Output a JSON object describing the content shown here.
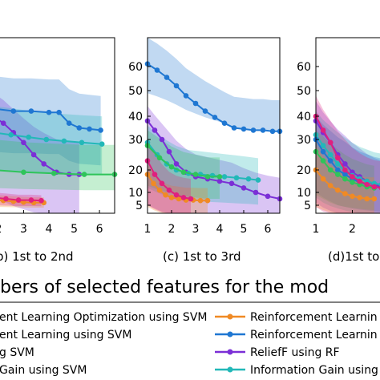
{
  "figure_caption": "bers of selected features for the mod",
  "panels": [
    {
      "id": "b",
      "caption": "b) 1st to 2nd"
    },
    {
      "id": "c",
      "caption": "(c) 1st to 3rd"
    },
    {
      "id": "d",
      "caption": "(d)1st to"
    }
  ],
  "legend": {
    "left": [
      {
        "label": "ent Learning Optimization using SVM",
        "color": "#f08a24"
      },
      {
        "label": "ent Learning using SVM",
        "color": "#1f77d2"
      },
      {
        "label": "g SVM",
        "color": "#e0207e"
      },
      {
        "label": "Gain using SVM",
        "color": "#2fc45a"
      }
    ],
    "right": [
      {
        "label": "Reinforcement Learnin",
        "color": "#f08a24"
      },
      {
        "label": "Reinforcement Learnin",
        "color": "#1f77d2"
      },
      {
        "label": "ReliefF using RF",
        "color": "#7b2fd6"
      },
      {
        "label": "Information Gain using",
        "color": "#22b8b8"
      }
    ]
  },
  "chart_data": [
    {
      "type": "line",
      "panel": "b",
      "x_ticks": [
        "2",
        "3",
        "4",
        "5",
        "6"
      ],
      "xlim": [
        1.75,
        6.6
      ],
      "ylim": [
        0,
        65
      ],
      "series": [
        {
          "color": "#1f77d2",
          "x": [
            1.8,
            2.6,
            3.3,
            4.0,
            4.4,
            4.8,
            5.2,
            5.6,
            6.05
          ],
          "y": [
            43,
            42,
            42,
            41.5,
            41.5,
            37,
            35,
            34.5,
            34
          ],
          "band": [
            26,
            56
          ]
        },
        {
          "color": "#7b2fd6",
          "x": [
            1.8,
            2.2,
            2.6,
            3.0,
            3.4,
            3.8,
            4.3,
            4.8,
            5.2
          ],
          "y": [
            40,
            37,
            33,
            29,
            25,
            22,
            19,
            18,
            18
          ],
          "band": [
            8,
            49
          ]
        },
        {
          "color": "#22b8b8",
          "x": [
            1.8,
            2.5,
            3.2,
            3.9,
            4.6,
            5.3,
            6.1
          ],
          "y": [
            33,
            32,
            31,
            30,
            29.5,
            29,
            28.5
          ],
          "band": [
            20,
            44
          ]
        },
        {
          "color": "#2fc45a",
          "x": [
            1.8,
            3.0,
            4.2,
            5.4,
            6.6
          ],
          "y": [
            20,
            19,
            18.5,
            18,
            18
          ],
          "band": [
            12,
            30
          ]
        },
        {
          "color": "#f08a24",
          "x": [
            1.8,
            2.2,
            2.6,
            3.0,
            3.4,
            3.8
          ],
          "y": [
            7,
            6.8,
            6.5,
            6.2,
            6,
            6
          ],
          "band": [
            4,
            9
          ]
        },
        {
          "color": "#e0207e",
          "x": [
            1.8,
            2.3,
            2.8,
            3.3,
            3.7
          ],
          "y": [
            8,
            7.5,
            7,
            7,
            6.8
          ],
          "band": [
            5,
            10
          ]
        }
      ]
    },
    {
      "type": "line",
      "panel": "c",
      "x_ticks": [
        "1",
        "2",
        "3",
        "4",
        "5",
        "6"
      ],
      "y_ticks": [
        "5",
        "10",
        "20",
        "30",
        "40",
        "50",
        "60"
      ],
      "xlim": [
        1,
        6.5
      ],
      "ylim": [
        0,
        67
      ],
      "series": [
        {
          "color": "#1f77d2",
          "x": [
            1.0,
            1.4,
            1.8,
            2.2,
            2.6,
            3.0,
            3.4,
            3.8,
            4.2,
            4.6,
            5.0,
            5.4,
            5.8,
            6.2,
            6.5
          ],
          "y": [
            61,
            58.5,
            55.5,
            52,
            48,
            45,
            42,
            39.5,
            37,
            35,
            34.5,
            34,
            34,
            33.5,
            33.5
          ],
          "band": [
            49,
            71
          ]
        },
        {
          "color": "#7b2fd6",
          "x": [
            1.0,
            1.3,
            1.6,
            1.9,
            2.2,
            2.6,
            3.0,
            3.5,
            4.0,
            4.5,
            5.0,
            5.5,
            6.0,
            6.5
          ],
          "y": [
            38,
            34,
            30,
            26,
            22,
            19,
            17,
            16,
            15,
            14,
            12,
            10,
            8.5,
            7.5
          ],
          "band": [
            5,
            44
          ]
        },
        {
          "color": "#22b8b8",
          "x": [
            1.0,
            1.4,
            1.8,
            2.2,
            2.7,
            3.2,
            3.7,
            4.2,
            4.7,
            5.2,
            5.6
          ],
          "y": [
            29,
            25,
            22,
            20,
            18.5,
            18,
            17.5,
            17,
            16.5,
            16,
            15.5
          ],
          "band": [
            12,
            36
          ]
        },
        {
          "color": "#2fc45a",
          "x": [
            1.0,
            1.5,
            2.0,
            2.5,
            3.0,
            3.5,
            4.0
          ],
          "y": [
            28,
            24,
            21,
            19,
            18,
            17,
            17
          ],
          "band": [
            13,
            34
          ]
        },
        {
          "color": "#f08a24",
          "x": [
            1.0,
            1.25,
            1.5,
            1.75,
            2.0,
            2.3,
            2.6,
            2.9,
            3.2,
            3.5
          ],
          "y": [
            18,
            14,
            11,
            9,
            8,
            7.5,
            7,
            7,
            6.8,
            6.8
          ],
          "band": [
            4,
            22
          ]
        },
        {
          "color": "#e0207e",
          "x": [
            1.0,
            1.3,
            1.6,
            1.9,
            2.2,
            2.5,
            2.8
          ],
          "y": [
            23,
            18,
            14,
            11,
            9,
            8,
            7.5
          ],
          "band": [
            5,
            30
          ]
        }
      ]
    },
    {
      "type": "line",
      "panel": "d",
      "x_ticks": [
        "1",
        "2"
      ],
      "y_ticks": [
        "5",
        "10",
        "20",
        "30",
        "40",
        "50",
        "60"
      ],
      "xlim": [
        1,
        3.0
      ],
      "ylim": [
        0,
        67
      ],
      "series": [
        {
          "color": "#7b2fd6",
          "x": [
            1.0,
            1.2,
            1.4,
            1.6,
            1.8,
            2.0,
            2.2,
            2.4,
            2.6,
            2.8,
            3.0
          ],
          "y": [
            38,
            33,
            29,
            25,
            22,
            19,
            17,
            15,
            13.5,
            12.5,
            12
          ],
          "band": [
            6,
            46
          ]
        },
        {
          "color": "#22b8b8",
          "x": [
            1.0,
            1.2,
            1.4,
            1.6,
            1.8,
            2.0,
            2.2,
            2.4,
            2.6,
            2.8,
            3.0
          ],
          "y": [
            32,
            28,
            25,
            22,
            19.5,
            17.5,
            16,
            15,
            14,
            13.5,
            13
          ],
          "band": [
            8,
            42
          ]
        },
        {
          "color": "#1f77d2",
          "x": [
            1.0,
            1.2,
            1.4,
            1.6,
            1.8,
            2.0,
            2.2,
            2.4,
            2.6,
            2.8,
            3.0
          ],
          "y": [
            30,
            26,
            23,
            20,
            18,
            16,
            14.5,
            13.5,
            12.5,
            12,
            11.5
          ],
          "band": [
            10,
            40
          ]
        },
        {
          "color": "#2fc45a",
          "x": [
            1.0,
            1.2,
            1.4,
            1.6,
            1.8,
            2.0,
            2.2,
            2.4,
            2.6
          ],
          "y": [
            26,
            23,
            20,
            18,
            16,
            14.5,
            13.5,
            12.5,
            12
          ],
          "band": [
            9,
            34
          ]
        },
        {
          "color": "#e0207e",
          "x": [
            1.0,
            1.2,
            1.4,
            1.6,
            1.8,
            2.0,
            2.2,
            2.4,
            2.6,
            2.8
          ],
          "y": [
            40,
            34,
            29,
            24,
            20,
            17,
            15,
            13.5,
            12.5,
            12
          ],
          "band": [
            4,
            48
          ]
        },
        {
          "color": "#f08a24",
          "x": [
            1.0,
            1.2,
            1.4,
            1.6,
            1.8,
            2.0,
            2.2,
            2.4,
            2.6
          ],
          "y": [
            20,
            16,
            13,
            11,
            9.5,
            8.5,
            8,
            7.5,
            7.5
          ],
          "band": [
            4,
            28
          ]
        }
      ]
    }
  ]
}
